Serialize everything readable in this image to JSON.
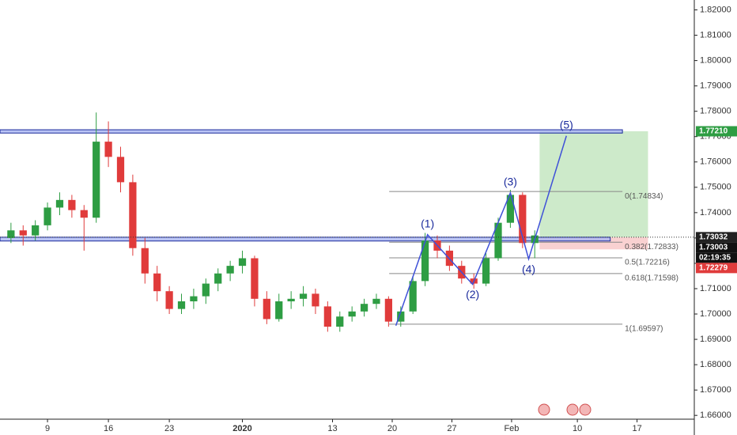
{
  "chart_data": {
    "type": "candlestick",
    "up_color": "#2e9d43",
    "down_color": "#e03b3b",
    "x": [
      -3,
      -2,
      -1,
      0,
      1,
      2,
      3,
      4,
      5,
      6,
      7,
      8,
      9,
      10,
      11,
      12,
      13,
      14,
      15,
      16,
      17,
      18,
      19,
      20,
      21,
      22,
      23,
      24,
      25,
      26,
      27,
      28,
      29,
      30,
      31,
      32,
      33,
      34,
      35,
      36,
      37,
      38,
      39,
      40
    ],
    "open": [
      1.73,
      1.733,
      1.731,
      1.735,
      1.742,
      1.745,
      1.741,
      1.738,
      1.768,
      1.762,
      1.752,
      1.726,
      1.716,
      1.709,
      1.702,
      1.705,
      1.707,
      1.712,
      1.716,
      1.719,
      1.722,
      1.706,
      1.698,
      1.705,
      1.706,
      1.708,
      1.703,
      1.695,
      1.699,
      1.701,
      1.704,
      1.706,
      1.697,
      1.701,
      1.713,
      1.729,
      1.725,
      1.719,
      1.714,
      1.712,
      1.722,
      1.736,
      1.747,
      1.728
    ],
    "high": [
      1.736,
      1.735,
      1.737,
      1.744,
      1.748,
      1.747,
      1.743,
      1.7795,
      1.776,
      1.766,
      1.755,
      1.73,
      1.719,
      1.711,
      1.708,
      1.71,
      1.714,
      1.718,
      1.721,
      1.725,
      1.723,
      1.709,
      1.708,
      1.709,
      1.711,
      1.71,
      1.705,
      1.701,
      1.703,
      1.706,
      1.708,
      1.707,
      1.703,
      1.715,
      1.732,
      1.731,
      1.727,
      1.721,
      1.716,
      1.724,
      1.738,
      1.749,
      1.748,
      1.733
    ],
    "low": [
      1.728,
      1.727,
      1.729,
      1.733,
      1.739,
      1.738,
      1.725,
      1.736,
      1.758,
      1.748,
      1.723,
      1.712,
      1.705,
      1.7,
      1.7,
      1.702,
      1.704,
      1.709,
      1.713,
      1.716,
      1.703,
      1.696,
      1.697,
      1.702,
      1.703,
      1.7,
      1.693,
      1.693,
      1.697,
      1.699,
      1.702,
      1.695,
      1.695,
      1.7,
      1.711,
      1.722,
      1.717,
      1.712,
      1.71,
      1.711,
      1.721,
      1.734,
      1.726,
      1.722
    ],
    "close": [
      1.733,
      1.731,
      1.735,
      1.742,
      1.745,
      1.741,
      1.738,
      1.768,
      1.762,
      1.752,
      1.726,
      1.716,
      1.709,
      1.702,
      1.705,
      1.707,
      1.712,
      1.716,
      1.719,
      1.722,
      1.706,
      1.698,
      1.705,
      1.706,
      1.708,
      1.703,
      1.695,
      1.699,
      1.701,
      1.704,
      1.706,
      1.697,
      1.701,
      1.713,
      1.729,
      1.725,
      1.719,
      1.714,
      1.712,
      1.722,
      1.736,
      1.747,
      1.728,
      1.731
    ],
    "xlim": [
      -3.9,
      53.1
    ],
    "xticks": [
      {
        "value": 0,
        "label": "9"
      },
      {
        "value": 5,
        "label": "16"
      },
      {
        "value": 10,
        "label": "23"
      },
      {
        "value": 16,
        "label": "2020"
      },
      {
        "value": 23.4,
        "label": "13"
      },
      {
        "value": 28.3,
        "label": "20"
      },
      {
        "value": 33.2,
        "label": "27"
      },
      {
        "value": 38.1,
        "label": "Feb"
      },
      {
        "value": 43.5,
        "label": "10"
      },
      {
        "value": 48.4,
        "label": "17"
      }
    ],
    "ylim": [
      1.6585,
      1.8239
    ],
    "yticks": [
      {
        "value": 1.66,
        "label": "1.66000"
      },
      {
        "value": 1.67,
        "label": "1.67000"
      },
      {
        "value": 1.68,
        "label": "1.68000"
      },
      {
        "value": 1.69,
        "label": "1.69000"
      },
      {
        "value": 1.7,
        "label": "1.70000"
      },
      {
        "value": 1.71,
        "label": "1.71000"
      },
      {
        "value": 1.72,
        "label": "1.72000"
      },
      {
        "value": 1.73,
        "label": "1.73000"
      },
      {
        "value": 1.74,
        "label": "1.74000"
      },
      {
        "value": 1.75,
        "label": "1.75000"
      },
      {
        "value": 1.76,
        "label": "1.76000"
      },
      {
        "value": 1.77,
        "label": "1.77000"
      },
      {
        "value": 1.78,
        "label": "1.78000"
      },
      {
        "value": 1.79,
        "label": "1.79000"
      },
      {
        "value": 1.8,
        "label": "1.80000"
      },
      {
        "value": 1.81,
        "label": "1.81000"
      },
      {
        "value": 1.82,
        "label": "1.82000"
      }
    ],
    "zones": [
      {
        "x": [
          -3.9,
          47.2
        ],
        "y": [
          1.7714,
          1.7727
        ]
      },
      {
        "x": [
          -3.9,
          46.2
        ],
        "y": [
          1.7288,
          1.7303
        ]
      }
    ],
    "fib_levels": [
      {
        "value": 1.74834,
        "label": "0(1.74834)"
      },
      {
        "value": 1.72833,
        "label": "0.382(1.72833)"
      },
      {
        "value": 1.72216,
        "label": "0.5(1.72216)"
      },
      {
        "value": 1.71598,
        "label": "0.618(1.71598)"
      },
      {
        "value": 1.69597,
        "label": "1(1.69597)"
      }
    ],
    "fib_x": [
      28.05,
      47.2
    ],
    "wave_start": {
      "x": 28.6,
      "y": 1.6954
    },
    "waves": [
      {
        "label": "(1)",
        "x": 31.2,
        "y": 1.7313
      },
      {
        "label": "(2)",
        "x": 34.9,
        "y": 1.7117
      },
      {
        "label": "(3)",
        "x": 38.0,
        "y": 1.7478
      },
      {
        "label": "(4)",
        "x": 39.5,
        "y": 1.7217
      },
      {
        "label": "(5)",
        "x": 42.6,
        "y": 1.7703
      }
    ],
    "target_box": {
      "x": [
        40.4,
        49.3
      ],
      "entry": 1.73032,
      "target": 1.7721,
      "stop": 1.7255
    },
    "last_price": 1.73032,
    "price_labels": [
      {
        "value": 1.7721,
        "label": "1.77210",
        "color": "#2e9d43"
      },
      {
        "value": 1.73032,
        "label": "1.73032",
        "color": "#222222"
      },
      {
        "value": 1.73003,
        "label": "1.73003",
        "color": "#111111"
      },
      {
        "value": 1.72279,
        "label": "1.72279",
        "color": "#e03b3b"
      }
    ],
    "countdown": "02:19:35"
  }
}
